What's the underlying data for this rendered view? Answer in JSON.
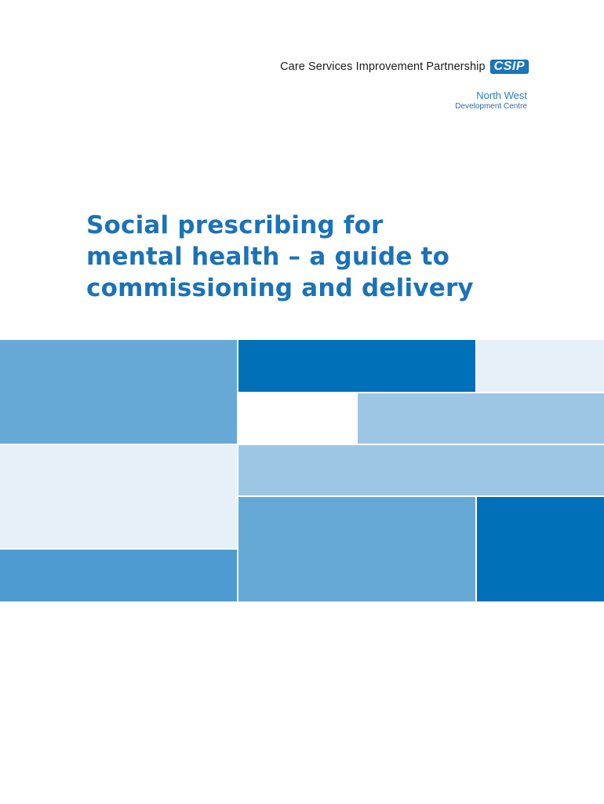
{
  "header": {
    "org_name": "Care Services Improvement Partnership",
    "logo_text": "CSIP",
    "region": "North West",
    "centre": "Development Centre"
  },
  "title": {
    "lines": [
      "Social prescribing for",
      "mental health – a guide to",
      "commissioning and delivery"
    ]
  },
  "colors": {
    "brand_blue": "#0070b8",
    "mid_blue": "#66a9d6",
    "light_blue": "#9dc6e5",
    "pale_blue": "#e5f0f8"
  }
}
